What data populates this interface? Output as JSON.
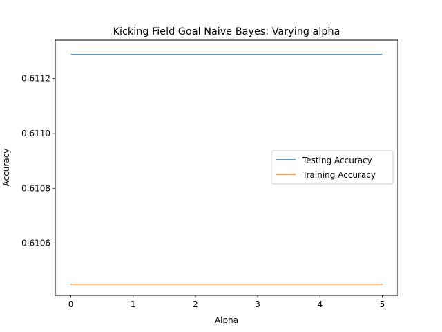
{
  "chart_data": {
    "type": "line",
    "title": "Kicking Field Goal Naive Bayes: Varying alpha",
    "xlabel": "Alpha",
    "ylabel": "Accuracy",
    "xlim": [
      -0.25,
      5.25
    ],
    "ylim": [
      0.61041,
      0.61134
    ],
    "xticks": [
      0,
      1,
      2,
      3,
      4,
      5
    ],
    "yticks": [
      0.6106,
      0.6108,
      0.611,
      0.6112
    ],
    "ytick_labels": [
      "0.6106",
      "0.6108",
      "0.6110",
      "0.6112"
    ],
    "legend_position": "center-right",
    "grid": false,
    "series": [
      {
        "name": "Testing Accuracy",
        "color": "#1f77b4",
        "x": [
          0,
          5
        ],
        "y": [
          0.611287,
          0.611287
        ]
      },
      {
        "name": "Training Accuracy",
        "color": "#ff7f0e",
        "x": [
          0,
          5
        ],
        "y": [
          0.610451,
          0.610451
        ]
      }
    ]
  }
}
